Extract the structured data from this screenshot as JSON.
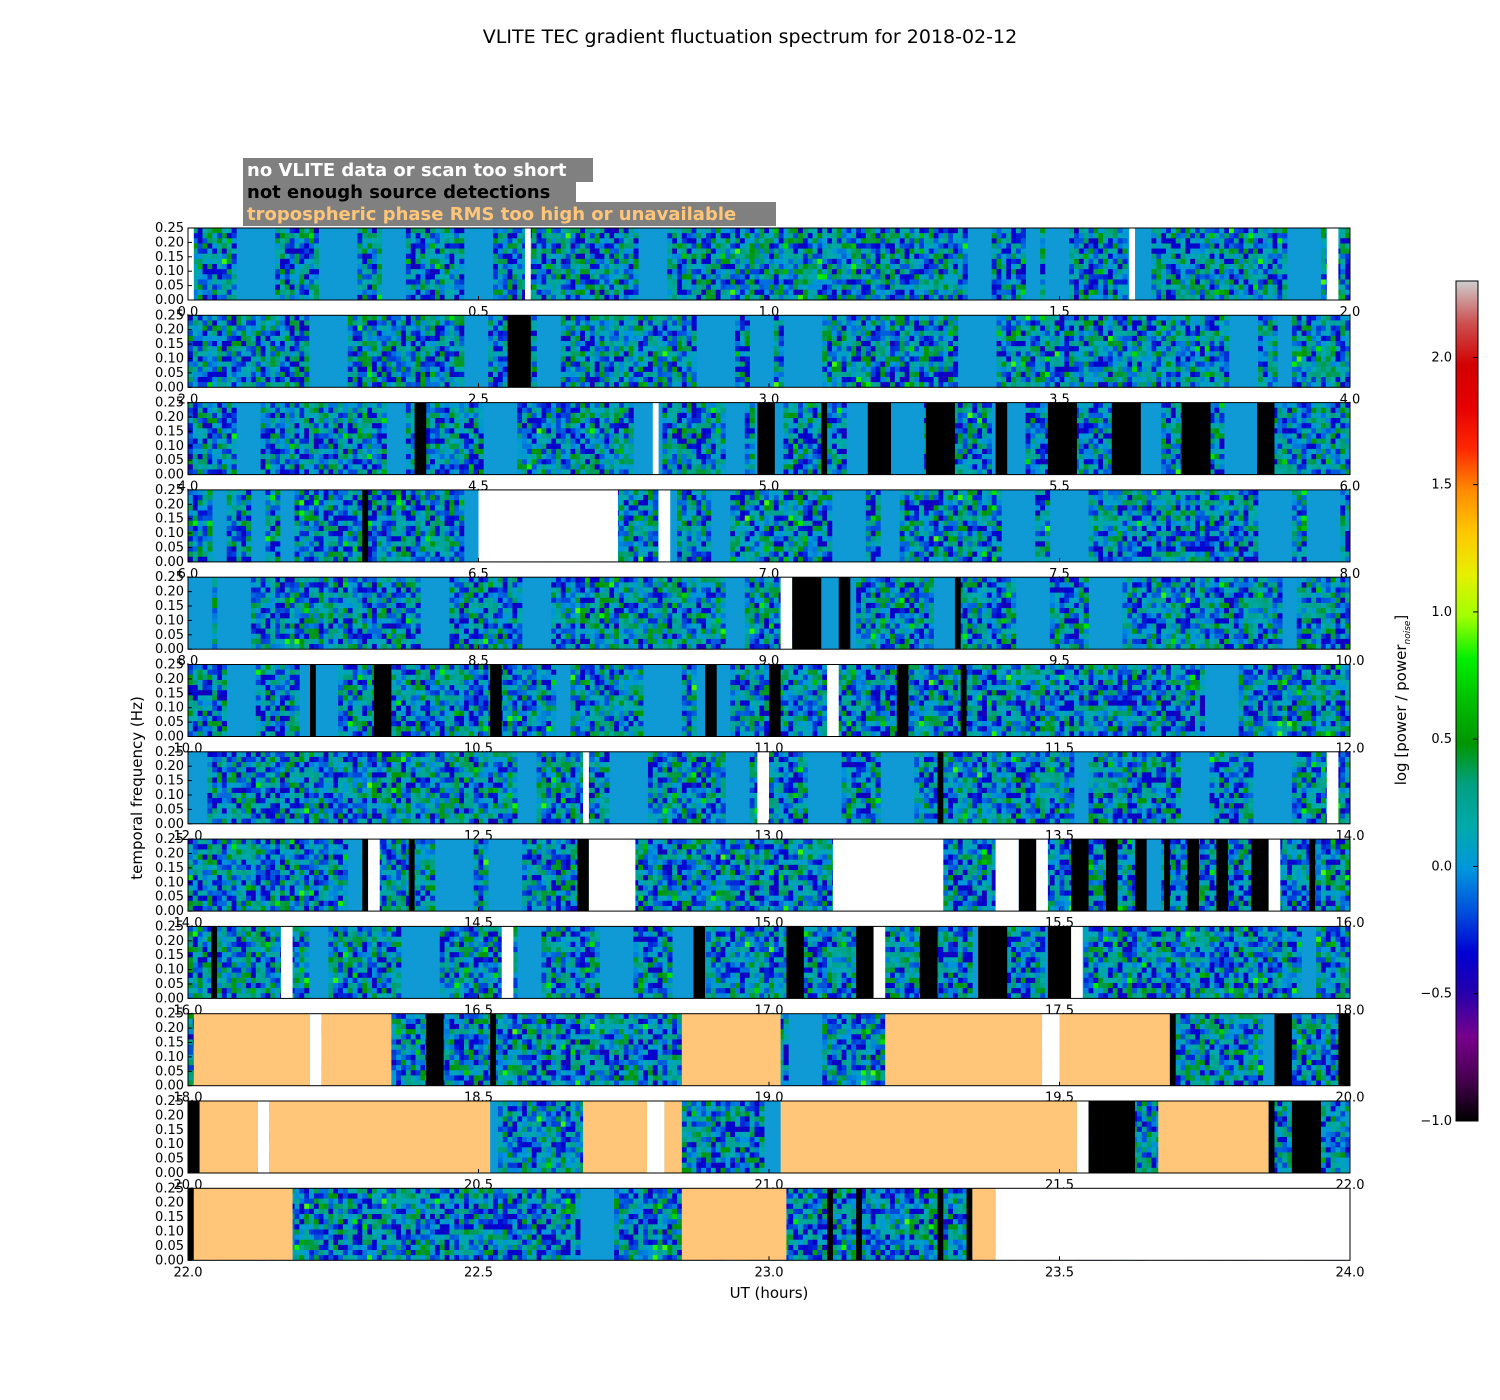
{
  "chart_data": {
    "type": "heatmap",
    "title": "VLITE TEC gradient fluctuation spectrum for 2018-02-12",
    "xlabel": "UT (hours)",
    "ylabel": "temporal frequency (Hz)",
    "ylim": [
      0,
      0.25
    ],
    "yticks": [
      "0.00",
      "0.05",
      "0.10",
      "0.15",
      "0.20",
      "0.25"
    ],
    "colorbar": {
      "label_main": "log [power / power",
      "label_sub": "noise",
      "label_end": "]",
      "range": [
        -1.0,
        2.3
      ],
      "ticks": [
        "−1.0",
        "−0.5",
        "0.0",
        "0.5",
        "1.0",
        "1.5",
        "2.0"
      ],
      "tick_values": [
        -1.0,
        -0.5,
        0.0,
        0.5,
        1.0,
        1.5,
        2.0
      ],
      "colormap": "nipy_spectral"
    },
    "legend": [
      {
        "text": "no VLITE data or scan too short",
        "color": "#ffffff"
      },
      {
        "text": "not enough source detections",
        "color": "#000000"
      },
      {
        "text": "tropospheric phase RMS too high or unavailable",
        "color": "#ffc67a"
      }
    ],
    "flag_colors": {
      "noData": "#ffffff",
      "noDetections": "#000000",
      "tropo": "#ffc67a",
      "baseline": "#0f9ad6"
    },
    "panels": [
      {
        "xrange": [
          0,
          2
        ],
        "xticks": [
          "0.0",
          "0.5",
          "1.0",
          "1.5",
          "2.0"
        ],
        "flags": [
          [
            "noData",
            0.0,
            0.01
          ],
          [
            "noData",
            0.58,
            0.59
          ],
          [
            "noData",
            1.62,
            1.63
          ],
          [
            "noData",
            1.96,
            1.98
          ]
        ]
      },
      {
        "xrange": [
          2,
          4
        ],
        "xticks": [
          "2.0",
          "2.5",
          "3.0",
          "3.5",
          "4.0"
        ],
        "flags": [
          [
            "noDetections",
            2.55,
            2.59
          ]
        ]
      },
      {
        "xrange": [
          4,
          6
        ],
        "xticks": [
          "4.0",
          "4.5",
          "5.0",
          "5.5",
          "6.0"
        ],
        "flags": [
          [
            "noDetections",
            4.39,
            4.41
          ],
          [
            "noData",
            4.8,
            4.81
          ],
          [
            "noDetections",
            4.98,
            5.01
          ],
          [
            "noDetections",
            5.09,
            5.1
          ],
          [
            "noDetections",
            5.17,
            5.21
          ],
          [
            "noDetections",
            5.27,
            5.32
          ],
          [
            "noDetections",
            5.39,
            5.41
          ],
          [
            "noDetections",
            5.48,
            5.53
          ],
          [
            "noDetections",
            5.59,
            5.64
          ],
          [
            "noDetections",
            5.71,
            5.76
          ],
          [
            "noDetections",
            5.84,
            5.87
          ]
        ]
      },
      {
        "xrange": [
          6,
          8
        ],
        "xticks": [
          "6.0",
          "6.5",
          "7.0",
          "7.5",
          "8.0"
        ],
        "flags": [
          [
            "noDetections",
            6.3,
            6.31
          ],
          [
            "noData",
            6.5,
            6.74
          ],
          [
            "noData",
            6.81,
            6.83
          ]
        ]
      },
      {
        "xrange": [
          8,
          10
        ],
        "xticks": [
          "8.0",
          "8.5",
          "9.0",
          "9.5",
          "10.0"
        ],
        "flags": [
          [
            "noData",
            9.02,
            9.04
          ],
          [
            "noDetections",
            9.04,
            9.09
          ],
          [
            "noDetections",
            9.12,
            9.14
          ],
          [
            "noDetections",
            9.32,
            9.33
          ]
        ]
      },
      {
        "xrange": [
          10,
          12
        ],
        "xticks": [
          "10.0",
          "10.5",
          "11.0",
          "11.5",
          "12.0"
        ],
        "flags": [
          [
            "noDetections",
            10.21,
            10.22
          ],
          [
            "noDetections",
            10.32,
            10.35
          ],
          [
            "noDetections",
            10.52,
            10.54
          ],
          [
            "noDetections",
            10.89,
            10.91
          ],
          [
            "noDetections",
            11.0,
            11.02
          ],
          [
            "noData",
            11.1,
            11.12
          ],
          [
            "noDetections",
            11.22,
            11.24
          ],
          [
            "noDetections",
            11.33,
            11.34
          ]
        ]
      },
      {
        "xrange": [
          12,
          14
        ],
        "xticks": [
          "12.0",
          "12.5",
          "13.0",
          "13.5",
          "14.0"
        ],
        "flags": [
          [
            "noData",
            12.68,
            12.69
          ],
          [
            "noData",
            12.98,
            13.0
          ],
          [
            "noDetections",
            13.29,
            13.3
          ],
          [
            "noData",
            13.96,
            13.98
          ]
        ]
      },
      {
        "xrange": [
          14,
          16
        ],
        "xticks": [
          "14.0",
          "14.5",
          "15.0",
          "15.5",
          "16.0"
        ],
        "flags": [
          [
            "noDetections",
            14.3,
            14.31
          ],
          [
            "noData",
            14.31,
            14.33
          ],
          [
            "noDetections",
            14.38,
            14.39
          ],
          [
            "noDetections",
            14.67,
            14.69
          ],
          [
            "noData",
            14.69,
            14.77
          ],
          [
            "noData",
            15.11,
            15.3
          ],
          [
            "noData",
            15.39,
            15.43
          ],
          [
            "noDetections",
            15.43,
            15.46
          ],
          [
            "noData",
            15.46,
            15.48
          ],
          [
            "noDetections",
            15.52,
            15.55
          ],
          [
            "noDetections",
            15.58,
            15.6
          ],
          [
            "noDetections",
            15.63,
            15.65
          ],
          [
            "noDetections",
            15.68,
            15.69
          ],
          [
            "noDetections",
            15.72,
            15.74
          ],
          [
            "noDetections",
            15.77,
            15.79
          ],
          [
            "noDetections",
            15.83,
            15.86
          ],
          [
            "noData",
            15.86,
            15.88
          ],
          [
            "noDetections",
            15.93,
            15.94
          ]
        ]
      },
      {
        "xrange": [
          16,
          18
        ],
        "xticks": [
          "16.0",
          "16.5",
          "17.0",
          "17.5",
          "18.0"
        ],
        "flags": [
          [
            "noDetections",
            16.04,
            16.05
          ],
          [
            "noData",
            16.16,
            16.18
          ],
          [
            "noData",
            16.54,
            16.56
          ],
          [
            "noDetections",
            16.87,
            16.89
          ],
          [
            "noDetections",
            17.03,
            17.06
          ],
          [
            "noDetections",
            17.15,
            17.18
          ],
          [
            "noData",
            17.18,
            17.2
          ],
          [
            "noDetections",
            17.26,
            17.29
          ],
          [
            "noDetections",
            17.36,
            17.41
          ],
          [
            "noDetections",
            17.48,
            17.52
          ],
          [
            "noData",
            17.52,
            17.54
          ]
        ]
      },
      {
        "xrange": [
          18,
          20
        ],
        "xticks": [
          "18.0",
          "18.5",
          "19.0",
          "19.5",
          "20.0"
        ],
        "flags": [
          [
            "tropo",
            18.01,
            18.21
          ],
          [
            "noData",
            18.21,
            18.23
          ],
          [
            "tropo",
            18.23,
            18.35
          ],
          [
            "noDetections",
            18.41,
            18.44
          ],
          [
            "noDetections",
            18.52,
            18.53
          ],
          [
            "tropo",
            18.85,
            19.02
          ],
          [
            "tropo",
            19.2,
            19.47
          ],
          [
            "noData",
            19.47,
            19.5
          ],
          [
            "tropo",
            19.5,
            19.69
          ],
          [
            "noDetections",
            19.69,
            19.7
          ],
          [
            "noDetections",
            19.87,
            19.9
          ],
          [
            "noDetections",
            19.98,
            20.0
          ]
        ]
      },
      {
        "xrange": [
          20,
          22
        ],
        "xticks": [
          "20.0",
          "20.5",
          "21.0",
          "21.5",
          "22.0"
        ],
        "flags": [
          [
            "noDetections",
            20.0,
            20.02
          ],
          [
            "tropo",
            20.02,
            20.12
          ],
          [
            "noData",
            20.12,
            20.14
          ],
          [
            "tropo",
            20.14,
            20.52
          ],
          [
            "tropo",
            20.68,
            20.79
          ],
          [
            "noData",
            20.79,
            20.82
          ],
          [
            "tropo",
            20.82,
            20.85
          ],
          [
            "tropo",
            21.02,
            21.53
          ],
          [
            "noData",
            21.53,
            21.55
          ],
          [
            "noDetections",
            21.55,
            21.63
          ],
          [
            "tropo",
            21.67,
            21.86
          ],
          [
            "noDetections",
            21.86,
            21.87
          ],
          [
            "noDetections",
            21.9,
            21.95
          ]
        ]
      },
      {
        "xrange": [
          22,
          24
        ],
        "xticks": [
          "22.0",
          "22.5",
          "23.0",
          "23.5",
          "24.0"
        ],
        "flags": [
          [
            "noDetections",
            22.0,
            22.01
          ],
          [
            "tropo",
            22.01,
            22.18
          ],
          [
            "tropo",
            22.85,
            23.03
          ],
          [
            "noDetections",
            23.1,
            23.11
          ],
          [
            "noDetections",
            23.15,
            23.16
          ],
          [
            "noDetections",
            23.29,
            23.3
          ],
          [
            "noDetections",
            23.34,
            23.35
          ],
          [
            "tropo",
            23.35,
            23.39
          ],
          [
            "noData",
            23.39,
            24.0
          ]
        ]
      }
    ]
  }
}
